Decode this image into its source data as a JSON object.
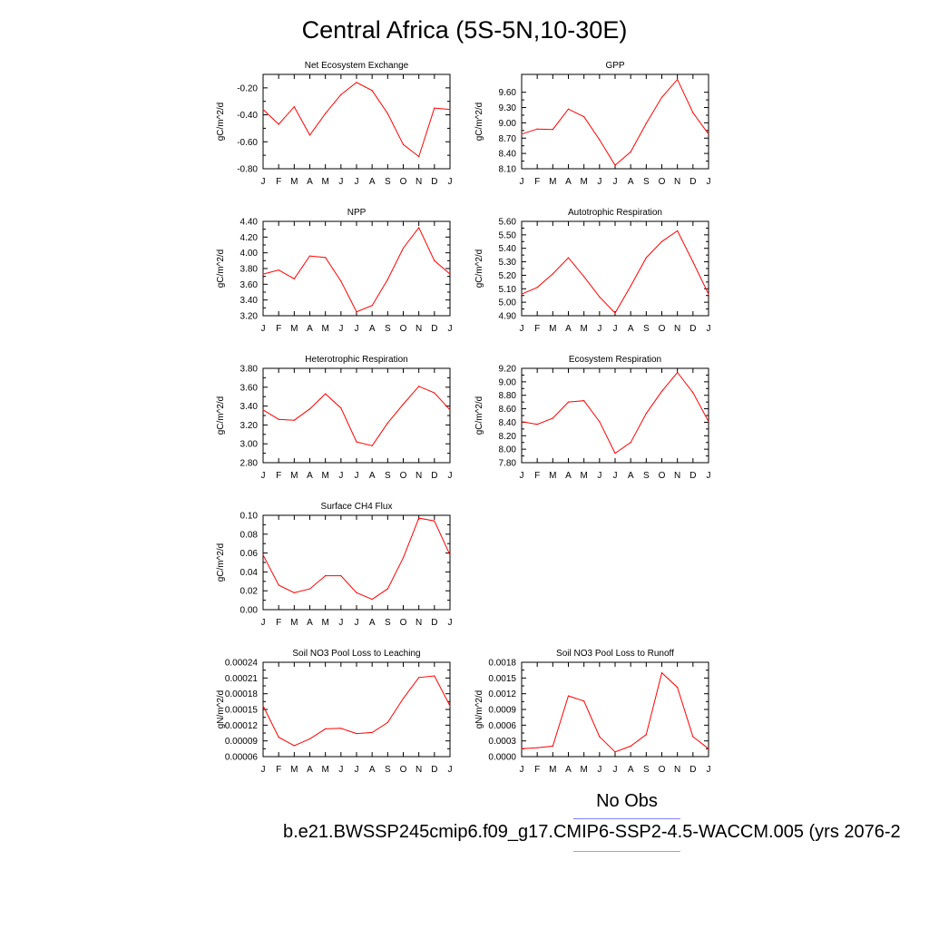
{
  "page": {
    "title": "Central Africa (5S-5N,10-30E)",
    "legend_obs": "No Obs",
    "legend_case": "b.e21.BWSSP245cmip6.f09_g17.CMIP6-SSP2-4.5-WACCM.005 (yrs 2076-2",
    "obs_line_color": "#8080ff",
    "case_line_color": "#ff8080"
  },
  "chart_data": [
    {
      "type": "line",
      "title": "Net Ecosystem Exchange",
      "ylabel": "gC/m^2/d",
      "categories": [
        "J",
        "F",
        "M",
        "A",
        "M",
        "J",
        "J",
        "A",
        "S",
        "O",
        "N",
        "D",
        "J"
      ],
      "ylim": [
        -0.8,
        -0.1
      ],
      "yticks": [
        "-0.20",
        "-0.40",
        "-0.60",
        "-0.80"
      ],
      "ytick_values": [
        -0.2,
        -0.4,
        -0.6,
        -0.8
      ],
      "color": "#ff0000",
      "values": [
        -0.36,
        -0.47,
        -0.34,
        -0.55,
        -0.39,
        -0.25,
        -0.16,
        -0.22,
        -0.39,
        -0.62,
        -0.71,
        -0.35,
        -0.36
      ]
    },
    {
      "type": "line",
      "title": "GPP",
      "ylabel": "gC/m^2/d",
      "categories": [
        "J",
        "F",
        "M",
        "A",
        "M",
        "J",
        "J",
        "A",
        "S",
        "O",
        "N",
        "D",
        "J"
      ],
      "ylim": [
        8.1,
        9.95
      ],
      "yticks": [
        "9.60",
        "9.30",
        "9.00",
        "8.70",
        "8.40",
        "8.10"
      ],
      "ytick_values": [
        9.6,
        9.3,
        9.0,
        8.7,
        8.4,
        8.1
      ],
      "color": "#ff0000",
      "values": [
        8.78,
        8.88,
        8.87,
        9.27,
        9.12,
        8.67,
        8.17,
        8.43,
        8.99,
        9.5,
        9.85,
        9.2,
        8.78
      ]
    },
    {
      "type": "line",
      "title": "NPP",
      "ylabel": "gC/m^2/d",
      "categories": [
        "J",
        "F",
        "M",
        "A",
        "M",
        "J",
        "J",
        "A",
        "S",
        "O",
        "N",
        "D",
        "J"
      ],
      "ylim": [
        3.2,
        4.4
      ],
      "yticks": [
        "4.40",
        "4.20",
        "4.00",
        "3.80",
        "3.60",
        "3.40",
        "3.20"
      ],
      "ytick_values": [
        4.4,
        4.2,
        4.0,
        3.8,
        3.6,
        3.4,
        3.2
      ],
      "color": "#ff0000",
      "values": [
        3.73,
        3.78,
        3.67,
        3.96,
        3.94,
        3.64,
        3.25,
        3.33,
        3.66,
        4.06,
        4.32,
        3.9,
        3.73
      ]
    },
    {
      "type": "line",
      "title": "Autotrophic Respiration",
      "ylabel": "gC/m^2/d",
      "categories": [
        "J",
        "F",
        "M",
        "A",
        "M",
        "J",
        "J",
        "A",
        "S",
        "O",
        "N",
        "D",
        "J"
      ],
      "ylim": [
        4.9,
        5.6
      ],
      "yticks": [
        "5.60",
        "5.50",
        "5.40",
        "5.30",
        "5.20",
        "5.10",
        "5.00",
        "4.90"
      ],
      "ytick_values": [
        5.6,
        5.5,
        5.4,
        5.3,
        5.2,
        5.1,
        5.0,
        4.9
      ],
      "color": "#ff0000",
      "values": [
        5.06,
        5.11,
        5.21,
        5.33,
        5.19,
        5.04,
        4.92,
        5.12,
        5.33,
        5.45,
        5.53,
        5.3,
        5.06
      ]
    },
    {
      "type": "line",
      "title": "Heterotrophic Respiration",
      "ylabel": "gC/m^2/d",
      "categories": [
        "J",
        "F",
        "M",
        "A",
        "M",
        "J",
        "J",
        "A",
        "S",
        "O",
        "N",
        "D",
        "J"
      ],
      "ylim": [
        2.8,
        3.8
      ],
      "yticks": [
        "3.80",
        "3.60",
        "3.40",
        "3.20",
        "3.00",
        "2.80"
      ],
      "ytick_values": [
        3.8,
        3.6,
        3.4,
        3.2,
        3.0,
        2.8
      ],
      "color": "#ff0000",
      "values": [
        3.36,
        3.26,
        3.25,
        3.37,
        3.53,
        3.38,
        3.02,
        2.98,
        3.22,
        3.42,
        3.61,
        3.54,
        3.36
      ]
    },
    {
      "type": "line",
      "title": "Ecosystem Respiration",
      "ylabel": "gC/m^2/d",
      "categories": [
        "J",
        "F",
        "M",
        "A",
        "M",
        "J",
        "J",
        "A",
        "S",
        "O",
        "N",
        "D",
        "J"
      ],
      "ylim": [
        7.8,
        9.2
      ],
      "yticks": [
        "9.20",
        "9.00",
        "8.80",
        "8.60",
        "8.40",
        "8.20",
        "8.00",
        "7.80"
      ],
      "ytick_values": [
        9.2,
        9.0,
        8.8,
        8.6,
        8.4,
        8.2,
        8.0,
        7.8
      ],
      "color": "#ff0000",
      "values": [
        8.41,
        8.37,
        8.46,
        8.7,
        8.72,
        8.41,
        7.94,
        8.1,
        8.53,
        8.86,
        9.14,
        8.84,
        8.41
      ]
    },
    {
      "type": "line",
      "title": "Surface CH4 Flux",
      "ylabel": "gC/m^2/d",
      "categories": [
        "J",
        "F",
        "M",
        "A",
        "M",
        "J",
        "J",
        "A",
        "S",
        "O",
        "N",
        "D",
        "J"
      ],
      "ylim": [
        0.0,
        0.1
      ],
      "yticks": [
        "0.10",
        "0.08",
        "0.06",
        "0.04",
        "0.02",
        "0.00"
      ],
      "ytick_values": [
        0.1,
        0.08,
        0.06,
        0.04,
        0.02,
        0.0
      ],
      "color": "#ff0000",
      "values": [
        0.058,
        0.026,
        0.018,
        0.022,
        0.036,
        0.036,
        0.018,
        0.011,
        0.022,
        0.055,
        0.097,
        0.094,
        0.058
      ]
    },
    {
      "type": "line",
      "title": "Soil NO3 Pool Loss to Leaching",
      "ylabel": "gN/m^2/d",
      "categories": [
        "J",
        "F",
        "M",
        "A",
        "M",
        "J",
        "J",
        "A",
        "S",
        "O",
        "N",
        "D",
        "J"
      ],
      "ylim": [
        6e-05,
        0.00024
      ],
      "yticks": [
        "0.00024",
        "0.00021",
        "0.00018",
        "0.00015",
        "0.00012",
        "0.00009",
        "0.00006"
      ],
      "ytick_values": [
        0.00024,
        0.00021,
        0.00018,
        0.00015,
        0.00012,
        9e-05,
        6e-05
      ],
      "color": "#ff0000",
      "values": [
        0.000157,
        9.7e-05,
        8.1e-05,
        9.4e-05,
        0.000113,
        0.000114,
        0.000104,
        0.000106,
        0.000125,
        0.000171,
        0.000211,
        0.000214,
        0.000157
      ]
    },
    {
      "type": "line",
      "title": "Soil NO3 Pool Loss to Runoff",
      "ylabel": "gN/m^2/d",
      "categories": [
        "J",
        "F",
        "M",
        "A",
        "M",
        "J",
        "J",
        "A",
        "S",
        "O",
        "N",
        "D",
        "J"
      ],
      "ylim": [
        0.0,
        0.0018
      ],
      "yticks": [
        "0.0018",
        "0.0015",
        "0.0012",
        "0.0009",
        "0.0006",
        "0.0003",
        "0.0000"
      ],
      "ytick_values": [
        0.0018,
        0.0015,
        0.0012,
        0.0009,
        0.0006,
        0.0003,
        0.0
      ],
      "color": "#ff0000",
      "values": [
        0.00015,
        0.00017,
        0.0002,
        0.00116,
        0.00106,
        0.00038,
        9e-05,
        0.0002,
        0.00042,
        0.0016,
        0.00132,
        0.00038,
        0.00015
      ]
    }
  ]
}
